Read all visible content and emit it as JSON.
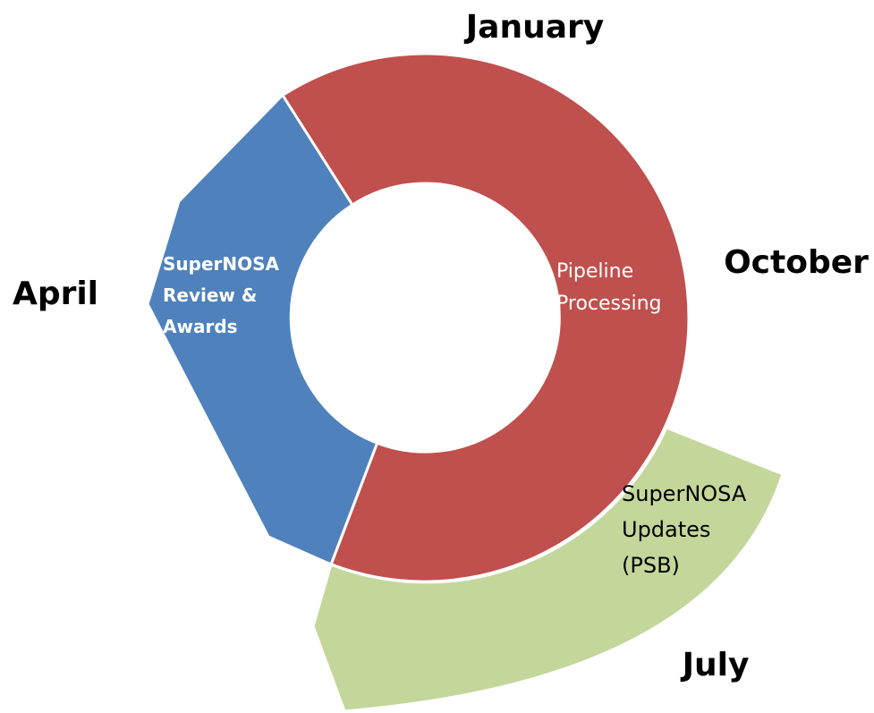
{
  "months": [
    "January",
    "October",
    "July",
    "April"
  ],
  "segments": [
    {
      "label": [
        "Pipeline",
        "Processing"
      ]
    },
    {
      "label": [
        "SuperNOSA",
        "Review &",
        "Awards"
      ]
    },
    {
      "label": [
        "SuperNOSA",
        "Updates",
        "(PSB)"
      ]
    }
  ]
}
